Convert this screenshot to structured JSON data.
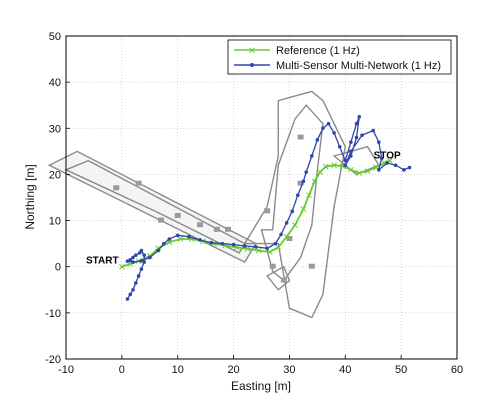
{
  "chart_data": {
    "type": "line",
    "xlabel": "Easting [m]",
    "ylabel": "Northing [m]",
    "xlim": [
      -10,
      60
    ],
    "ylim": [
      -20,
      50
    ],
    "xticks": [
      "-10",
      "0",
      "10",
      "20",
      "30",
      "40",
      "50",
      "60"
    ],
    "yticks": [
      "-20",
      "-10",
      "0",
      "10",
      "20",
      "30",
      "40",
      "50"
    ],
    "grid": true,
    "legend_position": "top-right",
    "annotations": [
      {
        "text": "START",
        "x": -3.5,
        "y": 0.7
      },
      {
        "text": "STOP",
        "x": 47.5,
        "y": 23.5
      }
    ],
    "series": [
      {
        "name": "Reference (1 Hz)",
        "color": "#66cc33",
        "marker": "x",
        "x": [
          0.0,
          1.5,
          3.0,
          5.0,
          6.5,
          8.5,
          10.5,
          12.5,
          14.5,
          16.5,
          18.5,
          20.5,
          22.5,
          24.5,
          26.5,
          28.0,
          29.5,
          31.0,
          32.5,
          33.5,
          34.5,
          35.5,
          36.5,
          38.0,
          39.5,
          41.0,
          42.5,
          44.0,
          45.5,
          47.0,
          48.0
        ],
        "y": [
          0.0,
          0.6,
          1.2,
          2.3,
          4.0,
          5.3,
          6.0,
          6.0,
          5.5,
          5.0,
          4.6,
          4.2,
          3.9,
          3.5,
          3.2,
          4.2,
          6.5,
          9.0,
          12.5,
          15.5,
          18.5,
          20.5,
          21.7,
          22.0,
          21.8,
          21.0,
          20.3,
          20.7,
          21.5,
          22.5,
          23.0
        ]
      },
      {
        "name": "Multi-Sensor Multi-Network (1 Hz)",
        "color": "#3344aa",
        "marker": "dot",
        "x": [
          1.0,
          1.5,
          2.0,
          2.5,
          3.0,
          3.5,
          4.0,
          4.0,
          3.5,
          3.2,
          2.5,
          2.0,
          1.5,
          1.0,
          2.0,
          3.5,
          5.0,
          6.5,
          7.5,
          8.5,
          10.0,
          12.0,
          14.0,
          16.0,
          18.0,
          20.0,
          22.0,
          24.0,
          26.0,
          27.5,
          28.5,
          29.5,
          30.5,
          31.5,
          32.5,
          33.0,
          34.0,
          35.0,
          36.0,
          37.0,
          38.0,
          39.0,
          40.0,
          41.0,
          42.0,
          42.5,
          42.0,
          41.0,
          40.0,
          41.0,
          43.0,
          45.0,
          46.0,
          46.5,
          46.0,
          47.5,
          49.0,
          50.5,
          51.5
        ],
        "y": [
          -7.0,
          -6.0,
          -5.0,
          -3.5,
          -2.0,
          -0.5,
          1.0,
          2.5,
          3.5,
          3.0,
          2.5,
          2.0,
          1.5,
          1.2,
          1.0,
          1.3,
          2.0,
          3.5,
          5.0,
          6.0,
          6.8,
          6.5,
          5.8,
          5.2,
          5.0,
          4.8,
          4.5,
          4.3,
          4.0,
          5.0,
          7.0,
          9.5,
          12.0,
          15.5,
          18.5,
          20.5,
          24.0,
          27.5,
          30.0,
          31.0,
          29.0,
          26.0,
          23.0,
          27.0,
          31.0,
          32.5,
          28.0,
          24.0,
          22.0,
          25.0,
          28.5,
          29.5,
          27.0,
          23.5,
          21.0,
          22.5,
          22.0,
          21.0,
          21.5
        ]
      }
    ]
  }
}
